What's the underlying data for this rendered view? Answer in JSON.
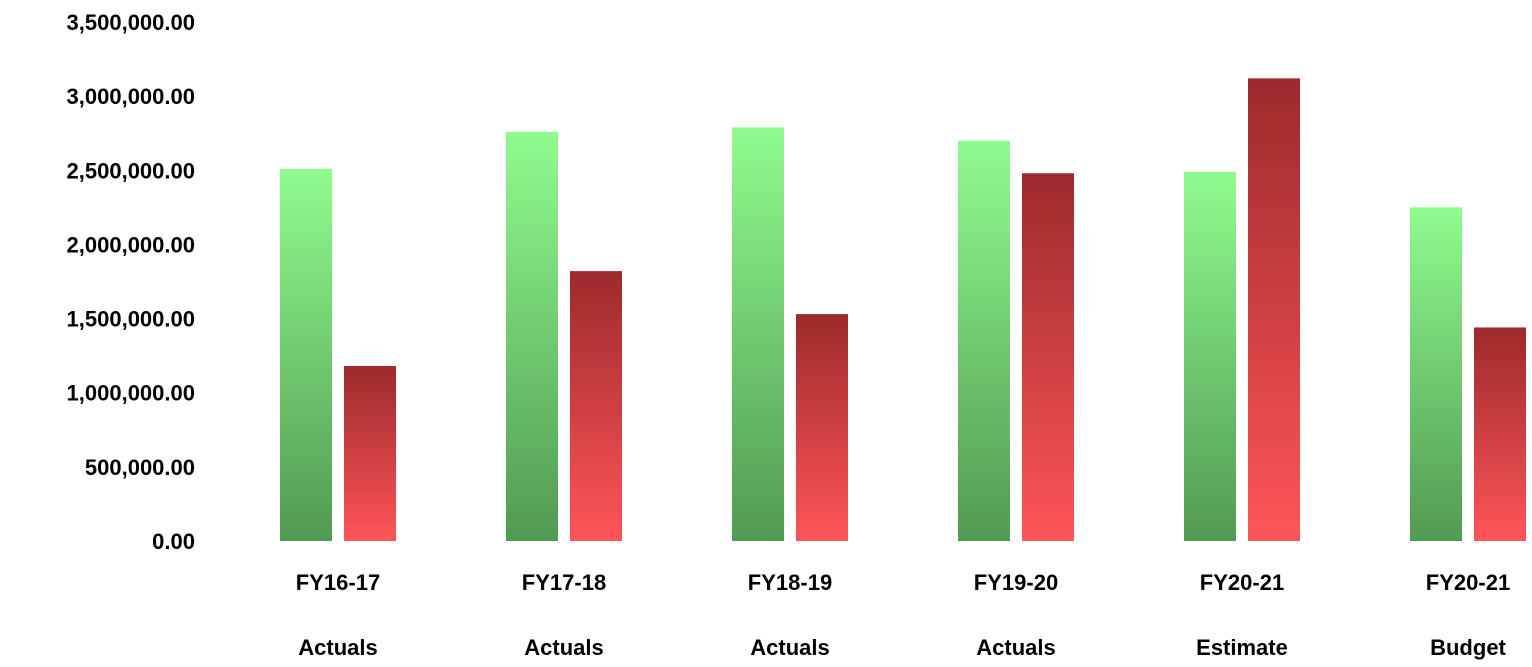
{
  "chart_data": {
    "type": "bar",
    "title": "",
    "xlabel": "",
    "ylabel": "",
    "ylim": [
      0,
      3500000
    ],
    "yticks": [
      0,
      500000,
      1000000,
      1500000,
      2000000,
      2500000,
      3000000,
      3500000
    ],
    "ytick_labels": [
      "0.00",
      "500,000.00",
      "1,000,000.00",
      "1,500,000.00",
      "2,000,000.00",
      "2,500,000.00",
      "3,000,000.00",
      "3,500,000.00"
    ],
    "grid": false,
    "legend": "none",
    "categories": [
      {
        "line1": "FY16-17",
        "line2": "Actuals"
      },
      {
        "line1": "FY17-18",
        "line2": "Actuals"
      },
      {
        "line1": "FY18-19",
        "line2": "Actuals"
      },
      {
        "line1": "FY19-20",
        "line2": "Actuals"
      },
      {
        "line1": "FY20-21",
        "line2": "Estimate"
      },
      {
        "line1": "FY20-21",
        "line2": "Budget"
      }
    ],
    "series": [
      {
        "values": [
          2510000,
          2760000,
          2790000,
          2700000,
          2490000,
          2250000
        ],
        "color_top": "#90fb8e",
        "color_bottom": "#519a52"
      },
      {
        "values": [
          1180000,
          1820000,
          1530000,
          2480000,
          3120000,
          1440000
        ],
        "color_top": "#9c2a2c",
        "color_bottom": "#ff5558"
      }
    ]
  }
}
